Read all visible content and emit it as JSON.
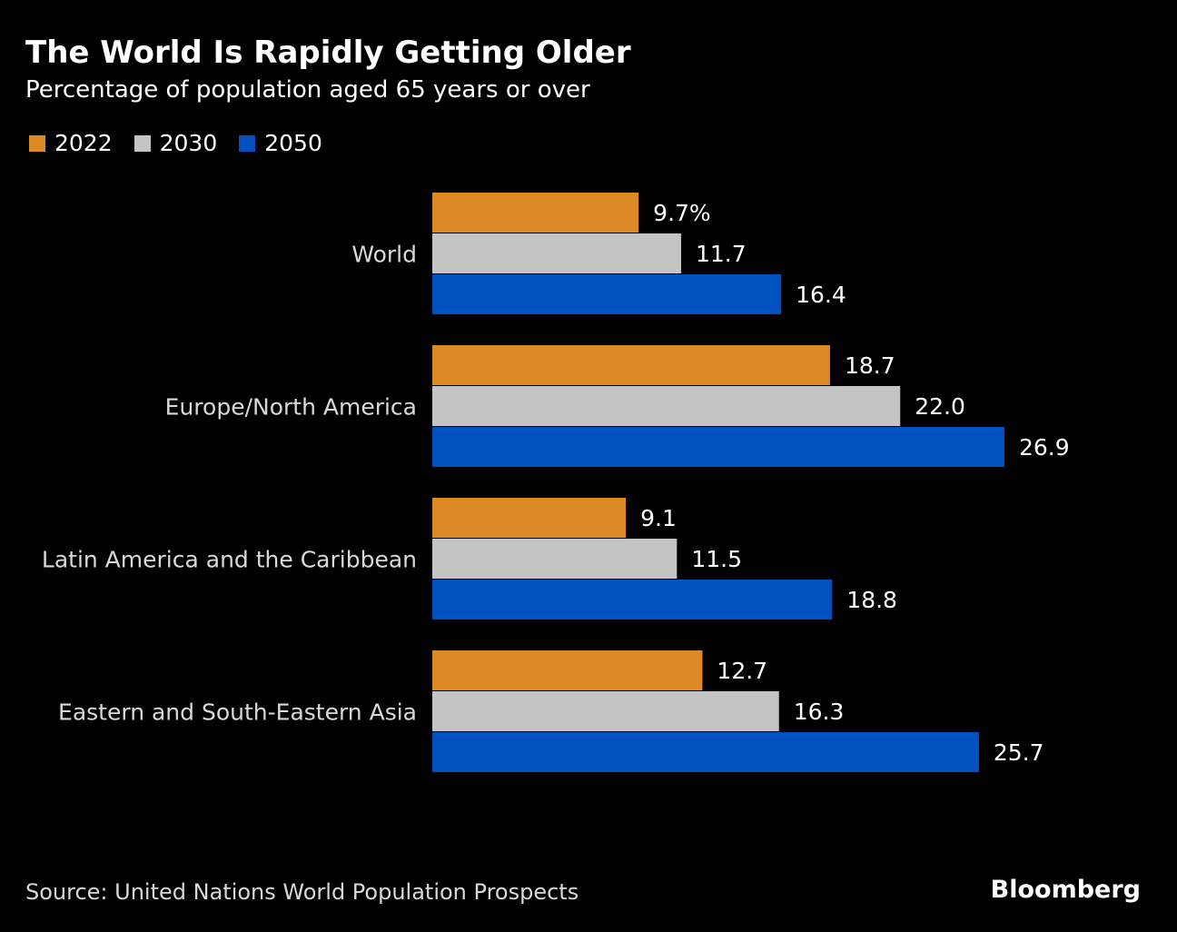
{
  "header": {
    "title": "The World Is Rapidly Getting Older",
    "subtitle": "Percentage of population aged 65 years or over"
  },
  "footer": {
    "source": "Source: United Nations World Population Prospects",
    "brand": "Bloomberg"
  },
  "chart_data": {
    "type": "bar",
    "orientation": "horizontal",
    "title": "The World Is Rapidly Getting Older",
    "subtitle": "Percentage of population aged 65 years or over",
    "categories": [
      "World",
      "Europe/North America",
      "Latin America and the Caribbean",
      "Eastern and South-Eastern Asia"
    ],
    "series": [
      {
        "name": "2022",
        "color": "#dc8a26",
        "values": [
          9.7,
          18.7,
          9.1,
          12.7
        ],
        "labels": [
          "9.7%",
          "18.7",
          "9.1",
          "12.7"
        ]
      },
      {
        "name": "2030",
        "color": "#c4c4c4",
        "values": [
          11.7,
          22.0,
          11.5,
          16.3
        ],
        "labels": [
          "11.7",
          "22.0",
          "11.5",
          "16.3"
        ]
      },
      {
        "name": "2050",
        "color": "#0050bf",
        "values": [
          16.4,
          26.9,
          18.8,
          25.7
        ],
        "labels": [
          "16.4",
          "26.9",
          "18.8",
          "25.7"
        ]
      }
    ],
    "xlim": [
      0,
      26.9
    ],
    "grid": false,
    "legend_position": "top-left",
    "data_labels": true
  }
}
